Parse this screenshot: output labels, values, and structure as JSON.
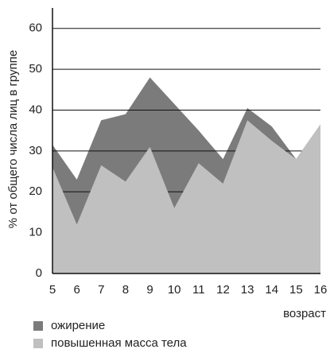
{
  "chart_data": {
    "type": "area",
    "y_label": "% от общего числа лиц в группе",
    "x_label": "возраст",
    "x": [
      5,
      6,
      7,
      8,
      9,
      10,
      11,
      12,
      13,
      14,
      15,
      16
    ],
    "series": [
      {
        "name": "ожирение",
        "color": "#7b7b7b",
        "values": [
          31.5,
          23,
          37.5,
          39,
          48,
          41.5,
          35,
          28,
          40.5,
          36,
          28,
          36.5
        ]
      },
      {
        "name": "повышенная масса тела",
        "color": "#c0c0c0",
        "values": [
          26,
          12,
          26.5,
          22.5,
          31,
          16,
          27,
          22,
          37.5,
          32.5,
          28,
          36.5
        ]
      }
    ],
    "xlim": [
      5,
      16
    ],
    "xticks": [
      5,
      6,
      7,
      8,
      9,
      10,
      11,
      12,
      13,
      14,
      15,
      16
    ],
    "ylim": [
      0,
      65
    ],
    "yticks": [
      0,
      10,
      20,
      30,
      40,
      50,
      60
    ],
    "grid": true
  }
}
